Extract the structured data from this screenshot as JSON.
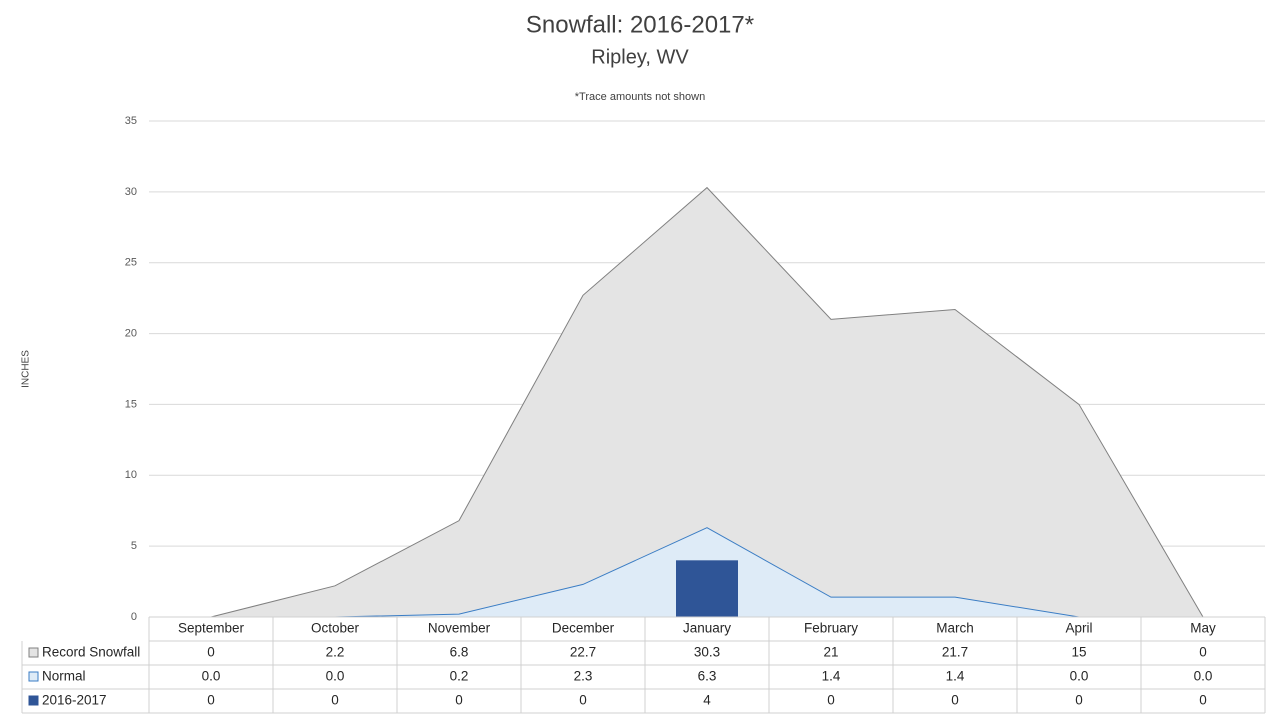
{
  "chart_data": {
    "type": "combo",
    "title": "Snowfall: 2016-2017*",
    "subtitle": "Ripley, WV",
    "annotation": "*Trace amounts not shown",
    "y_label": "INCHES",
    "categories": [
      "September",
      "October",
      "November",
      "December",
      "January",
      "February",
      "March",
      "April",
      "May"
    ],
    "series": [
      {
        "name": "Record Snowfall",
        "type": "area",
        "color": "#e4e4e4",
        "stroke": "#808080",
        "values": [
          0,
          2.2,
          6.8,
          22.7,
          30.3,
          21,
          21.7,
          15,
          0
        ]
      },
      {
        "name": "Normal",
        "type": "area",
        "color": "#deebf7",
        "stroke": "#3b7dc4",
        "values": [
          0,
          0,
          0.2,
          2.3,
          6.3,
          1.4,
          1.4,
          0,
          0
        ],
        "value_labels": [
          "0.0",
          "0.0",
          "0.2",
          "2.3",
          "6.3",
          "1.4",
          "1.4",
          "0.0",
          "0.0"
        ]
      },
      {
        "name": "2016-2017",
        "type": "bar",
        "color": "#2f5597",
        "values": [
          0,
          0,
          0,
          0,
          4,
          0,
          0,
          0,
          0
        ]
      }
    ],
    "ylim": [
      0,
      35
    ],
    "yticks": [
      0,
      5,
      10,
      15,
      20,
      25,
      30,
      35
    ],
    "grid": true,
    "data_table": true
  }
}
